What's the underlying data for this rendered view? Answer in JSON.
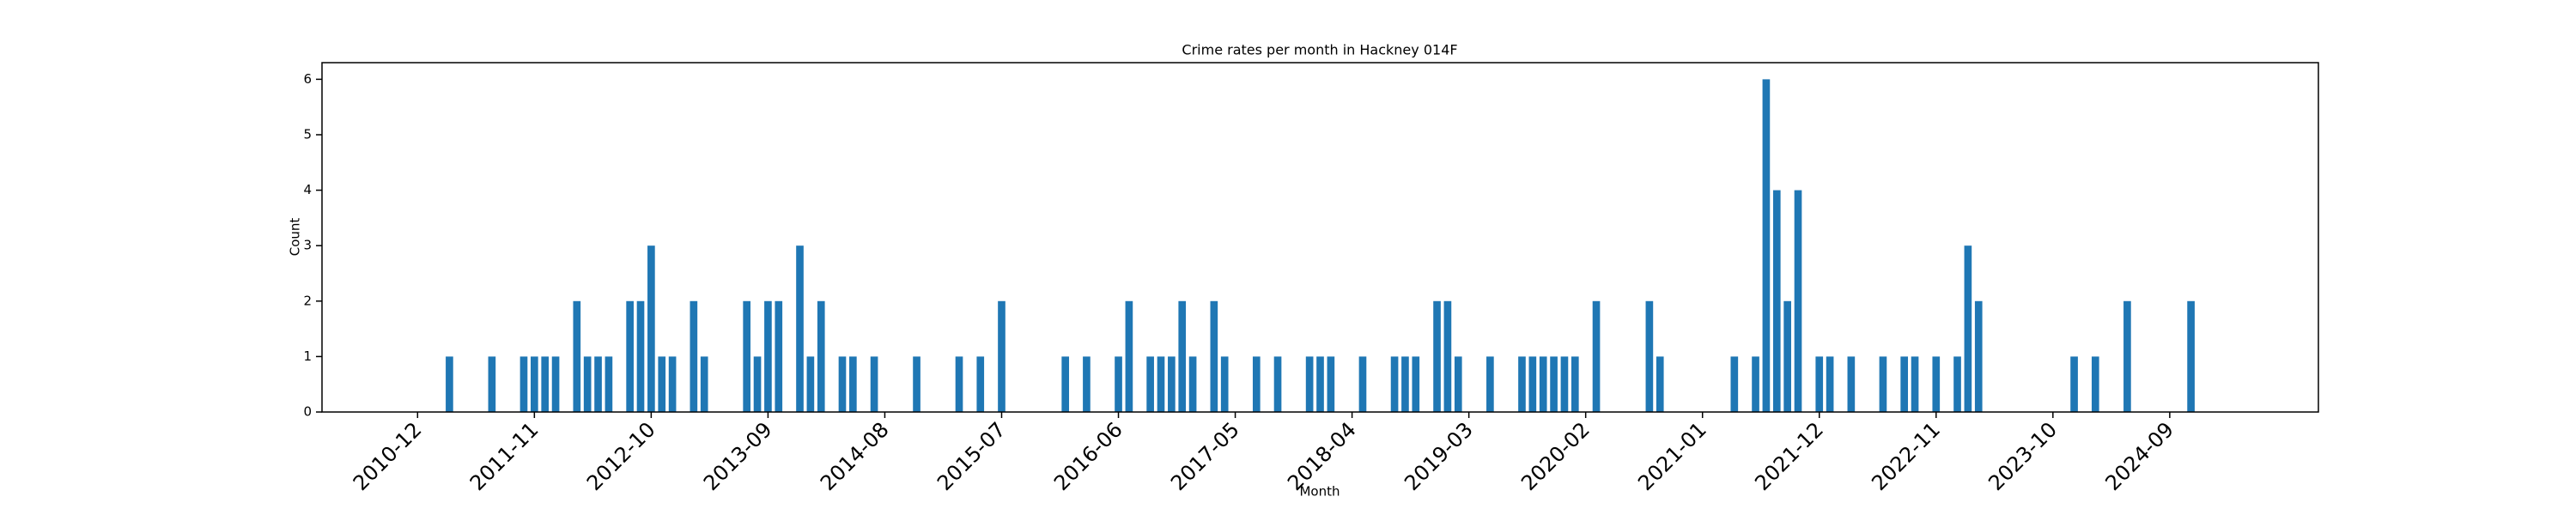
{
  "chart_data": {
    "type": "bar",
    "title": "Crime rates per month in Hackney 014F",
    "x_label": "Month",
    "y_label": "Count",
    "color": "#1f77b4",
    "x": [
      "2011-03",
      "2011-07",
      "2011-10",
      "2011-11",
      "2011-12",
      "2012-01",
      "2012-03",
      "2012-04",
      "2012-05",
      "2012-06",
      "2012-08",
      "2012-09",
      "2012-10",
      "2012-11",
      "2012-12",
      "2013-02",
      "2013-03",
      "2013-07",
      "2013-08",
      "2013-09",
      "2013-10",
      "2013-12",
      "2014-01",
      "2014-02",
      "2014-04",
      "2014-05",
      "2014-07",
      "2014-11",
      "2015-03",
      "2015-05",
      "2015-07",
      "2016-01",
      "2016-03",
      "2016-06",
      "2016-07",
      "2016-09",
      "2016-10",
      "2016-11",
      "2016-12",
      "2017-01",
      "2017-03",
      "2017-04",
      "2017-07",
      "2017-09",
      "2017-12",
      "2018-01",
      "2018-02",
      "2018-05",
      "2018-08",
      "2018-09",
      "2018-10",
      "2018-12",
      "2019-01",
      "2019-02",
      "2019-05",
      "2019-08",
      "2019-09",
      "2019-10",
      "2019-11",
      "2019-12",
      "2020-01",
      "2020-03",
      "2020-08",
      "2020-09",
      "2021-04",
      "2021-06",
      "2021-07",
      "2021-08",
      "2021-09",
      "2021-10",
      "2021-12",
      "2022-01",
      "2022-03",
      "2022-06",
      "2022-08",
      "2022-09",
      "2022-11",
      "2023-01",
      "2023-02",
      "2023-03",
      "2023-12",
      "2024-02",
      "2024-05",
      "2024-11"
    ],
    "values": [
      1,
      1,
      1,
      1,
      1,
      1,
      2,
      1,
      1,
      1,
      2,
      2,
      3,
      1,
      1,
      2,
      1,
      2,
      1,
      2,
      2,
      3,
      1,
      2,
      1,
      1,
      1,
      1,
      1,
      1,
      2,
      1,
      1,
      1,
      2,
      1,
      1,
      1,
      2,
      1,
      2,
      1,
      1,
      1,
      1,
      1,
      1,
      1,
      1,
      1,
      1,
      2,
      2,
      1,
      1,
      1,
      1,
      1,
      1,
      1,
      1,
      2,
      2,
      1,
      1,
      1,
      6,
      4,
      2,
      4,
      1,
      1,
      1,
      1,
      1,
      1,
      1,
      1,
      3,
      2,
      1,
      1,
      2,
      2
    ],
    "xlim": [
      "2010-03",
      "2025-11"
    ],
    "xticks": [
      "2010-12",
      "2011-11",
      "2012-10",
      "2013-09",
      "2014-08",
      "2015-07",
      "2016-06",
      "2017-05",
      "2018-04",
      "2019-03",
      "2020-02",
      "2021-01",
      "2021-12",
      "2022-11",
      "2023-10",
      "2024-09"
    ],
    "ylim": [
      0,
      6.3
    ],
    "yticks": [
      0,
      1,
      2,
      3,
      4,
      5,
      6
    ]
  }
}
